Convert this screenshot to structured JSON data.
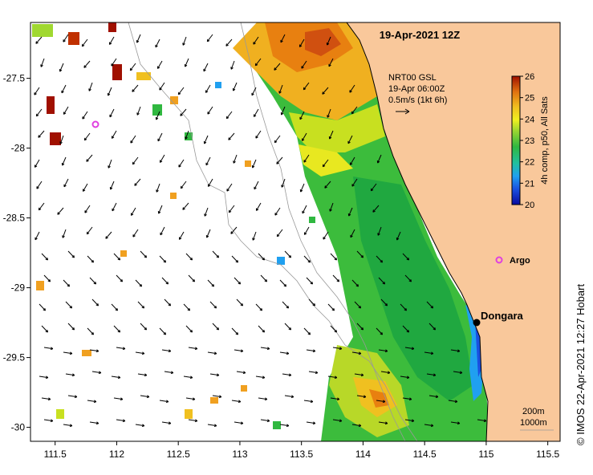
{
  "map": {
    "title": "19-Apr-2021 12Z",
    "credit": "©  IMOS 22-Apr-2021 12:27 Hobart",
    "lon_ticks": [
      "111.5",
      "112",
      "112.5",
      "113",
      "113.5",
      "114",
      "114.5",
      "115",
      "115.5"
    ],
    "lat_ticks": [
      "-27.5",
      "-28",
      "-28.5",
      "-29",
      "-29.5",
      "-30"
    ],
    "lon_range": [
      111.3,
      115.6
    ],
    "lat_range": [
      -30.1,
      -27.1
    ],
    "current_legend": {
      "line1": "NRT00 GSL",
      "line2": "19-Apr 06:00Z",
      "line3": "0.5m/s (1kt 6h)"
    },
    "colorbar": {
      "title": "4h comp, p50, All Sats",
      "ticks": [
        "26",
        "25",
        "24",
        "23",
        "22",
        "21",
        "20"
      ],
      "range": [
        20,
        26
      ]
    },
    "places": [
      {
        "name": "Dongara",
        "lon": 114.93,
        "lat": -29.25
      },
      {
        "name": "Argo",
        "lon": 115.12,
        "lat": -28.82
      }
    ],
    "argo_marker_offshore": {
      "lon": 111.84,
      "lat": -27.83
    },
    "isobaths": {
      "line1": "200m",
      "line2": "1000m"
    },
    "colors": {
      "land": "#f9c89b",
      "warm": "#f0a020",
      "mid": "#3ac040",
      "cool": "#1a70e0",
      "argo": "#e040e0"
    }
  }
}
